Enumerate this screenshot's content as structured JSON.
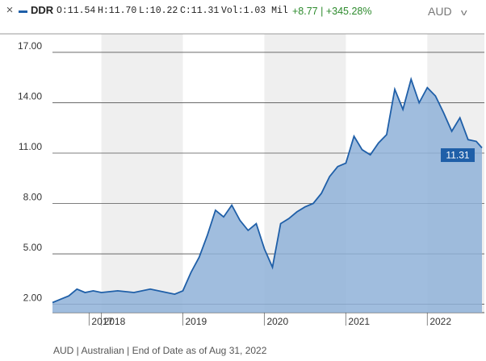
{
  "header": {
    "close_glyph": "×",
    "ticker": "DDR",
    "open": "O:11.54",
    "high": "H:11.70",
    "low": "L:10.22",
    "close": "C:11.31",
    "volume": "Vol:1.03 Mil",
    "change": "+8.77 | +345.28%",
    "currency": "AUD",
    "series_color": "#1f5fa8",
    "change_color": "#2c8a2c",
    "close_icon": "close-icon",
    "dropdown_icon": "chevron-down-icon"
  },
  "footer": {
    "text": "AUD | Australian | End of Date as of Aug 31, 2022"
  },
  "chart_data": {
    "type": "area",
    "title": "",
    "xlabel": "",
    "ylabel": "",
    "y_ticks": [
      "17.00",
      "14.00",
      "11.00",
      "8.00",
      "5.00",
      "2.00"
    ],
    "y_tick_values": [
      17,
      14,
      11,
      8,
      5,
      2
    ],
    "ylim": [
      1.5,
      18.1
    ],
    "x_ticks": [
      "2017",
      "2018",
      "2019",
      "2020",
      "2021",
      "2022"
    ],
    "x_tick_values": [
      2017.85,
      2018.0,
      2019.0,
      2020.0,
      2021.0,
      2022.0
    ],
    "xlim": [
      2017.4,
      2022.7
    ],
    "shaded_years": [
      2018,
      2020,
      2022
    ],
    "grid": "horizontal",
    "last_value_label": "11.31",
    "line_color": "#1f5fa8",
    "fill_color": "#8fb2d8",
    "shade_color": "#efefef",
    "series": [
      {
        "x": [
          2017.4,
          2017.5,
          2017.6,
          2017.7,
          2017.8,
          2017.9,
          2018.0,
          2018.2,
          2018.4,
          2018.6,
          2018.8,
          2018.9,
          2019.0,
          2019.1,
          2019.2,
          2019.3,
          2019.4,
          2019.5,
          2019.6,
          2019.7,
          2019.8,
          2019.9,
          2020.0,
          2020.1,
          2020.2,
          2020.3,
          2020.4,
          2020.5,
          2020.6,
          2020.7,
          2020.8,
          2020.9,
          2021.0,
          2021.1,
          2021.2,
          2021.3,
          2021.4,
          2021.5,
          2021.6,
          2021.7,
          2021.8,
          2021.9,
          2022.0,
          2022.1,
          2022.2,
          2022.3,
          2022.4,
          2022.5,
          2022.6,
          2022.67
        ],
        "y": [
          2.1,
          2.3,
          2.5,
          2.9,
          2.7,
          2.8,
          2.7,
          2.8,
          2.7,
          2.9,
          2.7,
          2.6,
          2.8,
          3.9,
          4.8,
          6.1,
          7.6,
          7.2,
          7.9,
          7.0,
          6.4,
          6.8,
          5.3,
          4.2,
          6.8,
          7.1,
          7.5,
          7.8,
          8.0,
          8.6,
          9.6,
          10.2,
          10.4,
          12.0,
          11.2,
          10.9,
          11.6,
          12.1,
          14.8,
          13.6,
          15.4,
          14.0,
          14.9,
          14.4,
          13.4,
          12.3,
          13.1,
          11.8,
          11.7,
          11.31
        ]
      }
    ]
  }
}
